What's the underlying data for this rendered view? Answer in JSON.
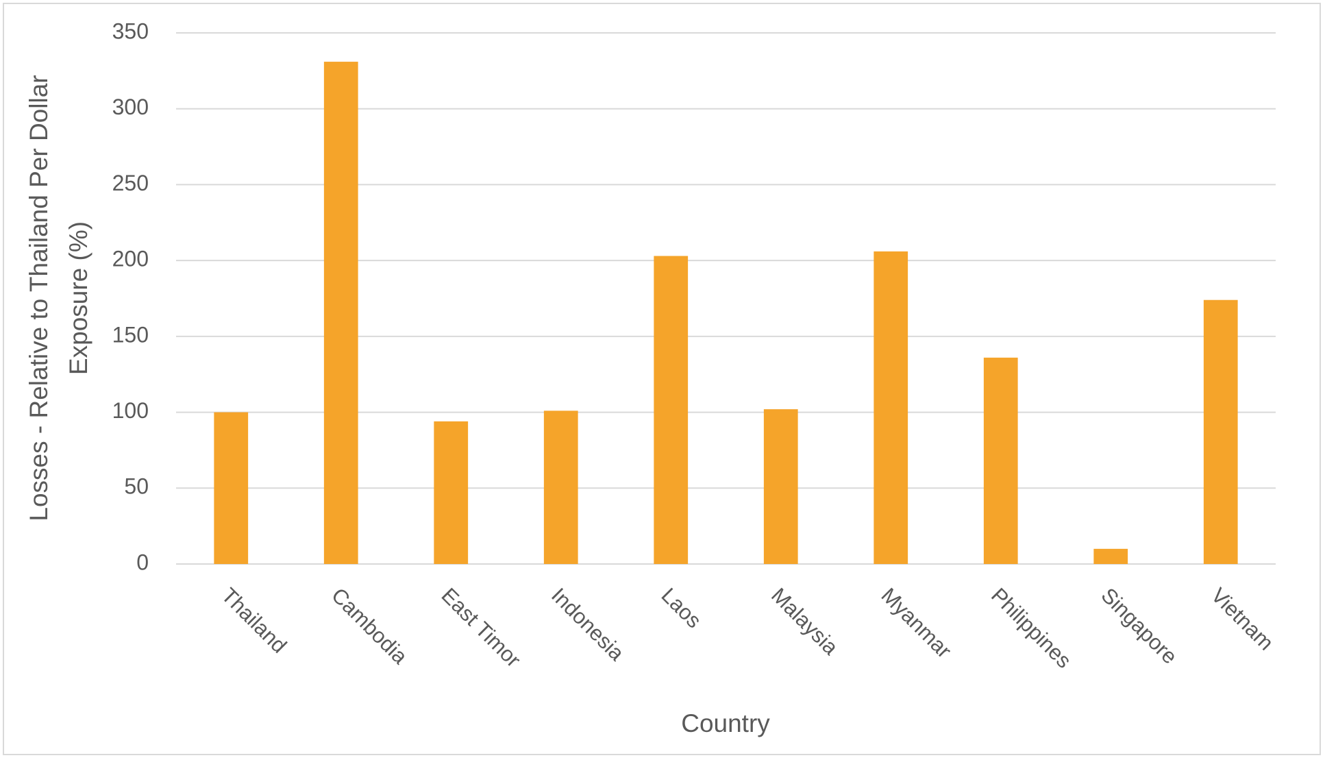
{
  "chart_data": {
    "type": "bar",
    "x_label": "Country",
    "y_label": [
      "Losses - Relative to Thailand Per Dollar",
      "Exposure (%)"
    ],
    "categories": [
      "Thailand",
      "Cambodia",
      "East Timor",
      "Indonesia",
      "Laos",
      "Malaysia",
      "Myanmar",
      "Philippines",
      "Singapore",
      "Vietnam"
    ],
    "values": [
      100,
      331,
      94,
      101,
      203,
      102,
      206,
      136,
      10,
      174
    ],
    "color": "#f5a42a",
    "ylim": [
      0,
      350
    ],
    "yticks": [
      0,
      50,
      100,
      150,
      200,
      250,
      300,
      350
    ],
    "grid": true
  }
}
